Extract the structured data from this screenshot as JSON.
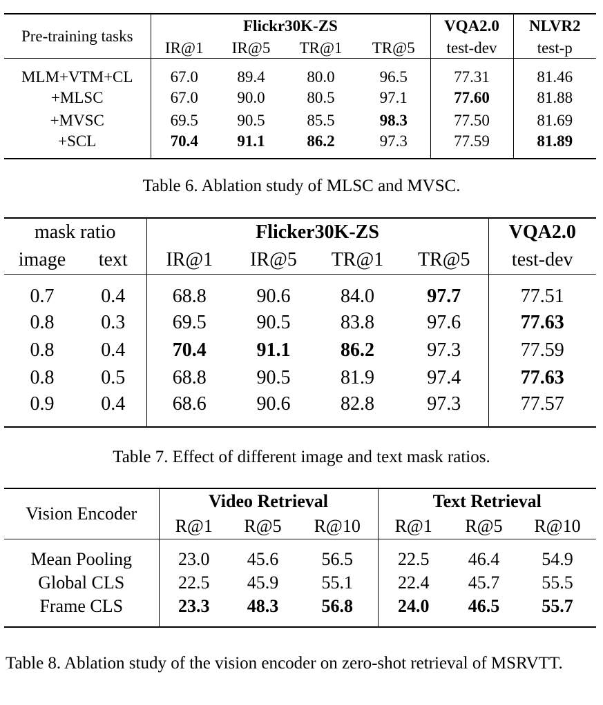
{
  "table6": {
    "group_header": {
      "pretrain": "Pre-training tasks",
      "flickr": "Flickr30K-ZS",
      "vqa": "VQA2.0",
      "nlvr": "NLVR2"
    },
    "sub_header": [
      "IR@1",
      "IR@5",
      "TR@1",
      "TR@5",
      "test-dev",
      "test-p"
    ],
    "rows": [
      {
        "label": "MLM+VTM+CL",
        "cells": [
          "67.0",
          "89.4",
          "80.0",
          "96.5",
          "77.31",
          "81.46"
        ]
      },
      {
        "label": "+MLSC",
        "cells": [
          "67.0",
          "90.0",
          "80.5",
          "97.1",
          "77.60",
          "81.88"
        ]
      },
      {
        "label": "+MVSC",
        "cells": [
          "69.5",
          "90.5",
          "85.5",
          "98.3",
          "77.50",
          "81.69"
        ]
      },
      {
        "label": "+SCL",
        "cells": [
          "70.4",
          "91.1",
          "86.2",
          "97.3",
          "77.59",
          "81.89"
        ]
      }
    ],
    "caption": "Table 6. Ablation study of MLSC and MVSC."
  },
  "table7": {
    "group_header": {
      "mask": "mask ratio",
      "flickr": "Flicker30K-ZS",
      "vqa": "VQA2.0"
    },
    "sub_header": [
      "image",
      "text",
      "IR@1",
      "IR@5",
      "TR@1",
      "TR@5",
      "test-dev"
    ],
    "rows": [
      [
        "0.7",
        "0.4",
        "68.8",
        "90.6",
        "84.0",
        "97.7",
        "77.51"
      ],
      [
        "0.8",
        "0.3",
        "69.5",
        "90.5",
        "83.8",
        "97.6",
        "77.63"
      ],
      [
        "0.8",
        "0.4",
        "70.4",
        "91.1",
        "86.2",
        "97.3",
        "77.59"
      ],
      [
        "0.8",
        "0.5",
        "68.8",
        "90.5",
        "81.9",
        "97.4",
        "77.63"
      ],
      [
        "0.9",
        "0.4",
        "68.6",
        "90.6",
        "82.8",
        "97.3",
        "77.57"
      ]
    ],
    "caption": "Table 7. Effect of different image and text mask ratios."
  },
  "table8": {
    "group_header": {
      "encoder": "Vision Encoder",
      "video": "Video Retrieval",
      "text": "Text Retrieval"
    },
    "sub_header": [
      "R@1",
      "R@5",
      "R@10",
      "R@1",
      "R@5",
      "R@10"
    ],
    "rows": [
      {
        "label": "Mean Pooling",
        "cells": [
          "23.0",
          "45.6",
          "56.5",
          "22.5",
          "46.4",
          "54.9"
        ]
      },
      {
        "label": "Global CLS",
        "cells": [
          "22.5",
          "45.9",
          "55.1",
          "22.4",
          "45.7",
          "55.5"
        ]
      },
      {
        "label": "Frame CLS",
        "cells": [
          "23.3",
          "48.3",
          "56.8",
          "24.0",
          "46.5",
          "55.7"
        ]
      }
    ],
    "caption": "Table 8. Ablation study of the vision encoder on zero-shot retrieval of MSRVTT."
  }
}
